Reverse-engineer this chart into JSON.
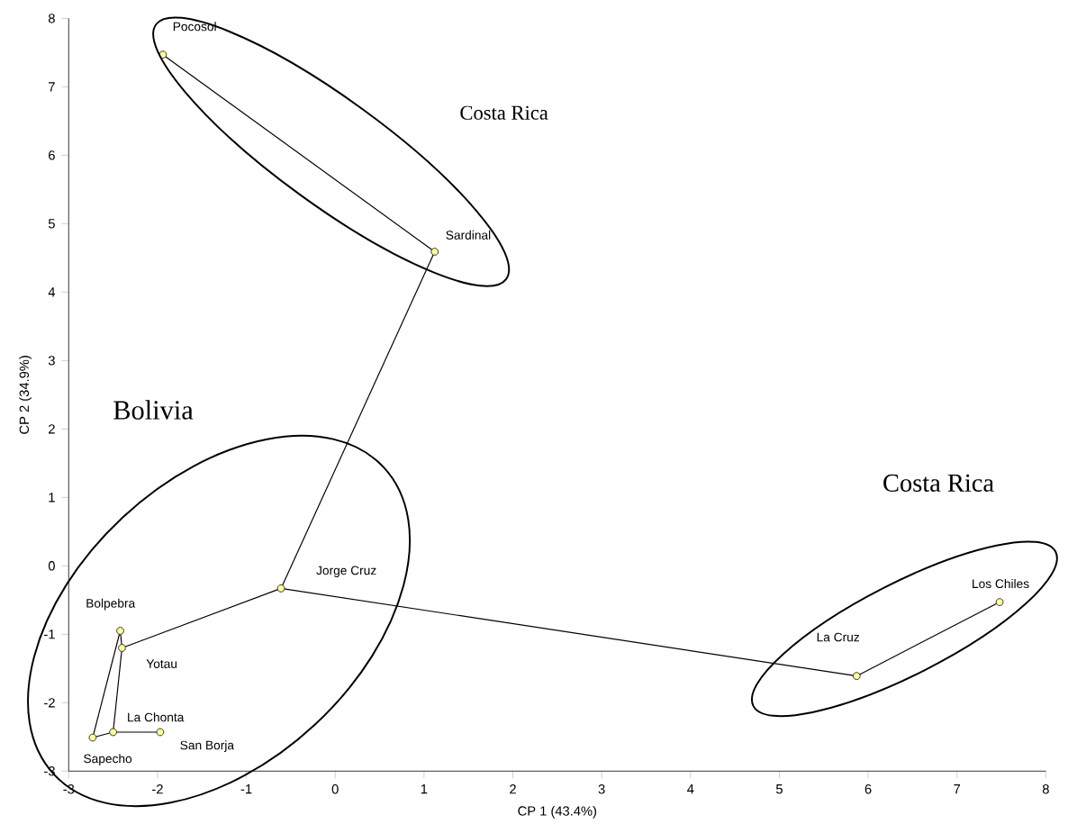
{
  "chart_data": {
    "type": "scatter",
    "xlabel": "CP 1 (43.4%)",
    "ylabel": "CP 2 (34.9%)",
    "xlim": [
      -3,
      8
    ],
    "ylim": [
      -3,
      8
    ],
    "xticks": [
      -3,
      -2,
      -1,
      0,
      1,
      2,
      3,
      4,
      5,
      6,
      7,
      8
    ],
    "yticks": [
      -3,
      -2,
      -1,
      0,
      1,
      2,
      3,
      4,
      5,
      6,
      7,
      8
    ],
    "grid": false,
    "series": [
      {
        "type": "scatter",
        "marker": "circle",
        "color": "#ffff99",
        "x": [
          -1.94,
          1.12,
          -0.61,
          -2.42,
          -2.4,
          -2.5,
          -1.97,
          -2.73,
          5.87,
          7.48
        ],
        "values": [
          7.47,
          4.59,
          -0.33,
          -0.95,
          -1.2,
          -2.43,
          -2.43,
          -2.51,
          -1.61,
          -0.53
        ]
      },
      {
        "type": "line",
        "marker": "none",
        "color": "#000000",
        "x": [
          -1.94,
          1.12
        ],
        "values": [
          7.47,
          4.59
        ]
      },
      {
        "type": "line",
        "marker": "none",
        "color": "#000000",
        "x": [
          1.12,
          -0.61
        ],
        "values": [
          4.59,
          -0.33
        ]
      },
      {
        "type": "line",
        "marker": "none",
        "color": "#000000",
        "x": [
          -0.61,
          -2.4
        ],
        "values": [
          -0.33,
          -1.2
        ]
      },
      {
        "type": "line",
        "marker": "none",
        "color": "#000000",
        "x": [
          -0.61,
          5.87
        ],
        "values": [
          -0.33,
          -1.61
        ]
      },
      {
        "type": "line",
        "marker": "none",
        "color": "#000000",
        "x": [
          5.87,
          7.48
        ],
        "values": [
          -1.61,
          -0.53
        ]
      },
      {
        "type": "line",
        "marker": "none",
        "color": "#000000",
        "x": [
          -2.4,
          -2.42
        ],
        "values": [
          -1.2,
          -0.95
        ]
      },
      {
        "type": "line",
        "marker": "none",
        "color": "#000000",
        "x": [
          -2.42,
          -2.73
        ],
        "values": [
          -0.95,
          -2.51
        ]
      },
      {
        "type": "line",
        "marker": "none",
        "color": "#000000",
        "x": [
          -2.4,
          -2.5
        ],
        "values": [
          -1.2,
          -2.43
        ]
      },
      {
        "type": "line",
        "marker": "none",
        "color": "#000000",
        "x": [
          -2.73,
          -2.5
        ],
        "values": [
          -2.51,
          -2.43
        ]
      },
      {
        "type": "line",
        "marker": "none",
        "color": "#000000",
        "x": [
          -2.5,
          -1.97
        ],
        "values": [
          -2.43,
          -2.43
        ]
      }
    ],
    "annotations": [
      {
        "text": "Pocosol",
        "x": -1.94,
        "y": 7.47
      },
      {
        "text": "Sardinal",
        "x": 1.12,
        "y": 4.59
      },
      {
        "text": "Jorge Cruz",
        "x": -0.61,
        "y": -0.33
      },
      {
        "text": "Bolpebra",
        "x": -2.42,
        "y": -0.95
      },
      {
        "text": "Yotau",
        "x": -2.4,
        "y": -1.2
      },
      {
        "text": "La Chonta",
        "x": -2.5,
        "y": -2.43
      },
      {
        "text": "San Borja",
        "x": -1.97,
        "y": -2.43
      },
      {
        "text": "Sapecho",
        "x": -2.73,
        "y": -2.51
      },
      {
        "text": "La Cruz",
        "x": 5.87,
        "y": -1.61
      },
      {
        "text": "Los Chiles",
        "x": 7.48,
        "y": -0.53
      },
      "Costa Rica",
      "Bolivia",
      "Costa Rica"
    ]
  }
}
